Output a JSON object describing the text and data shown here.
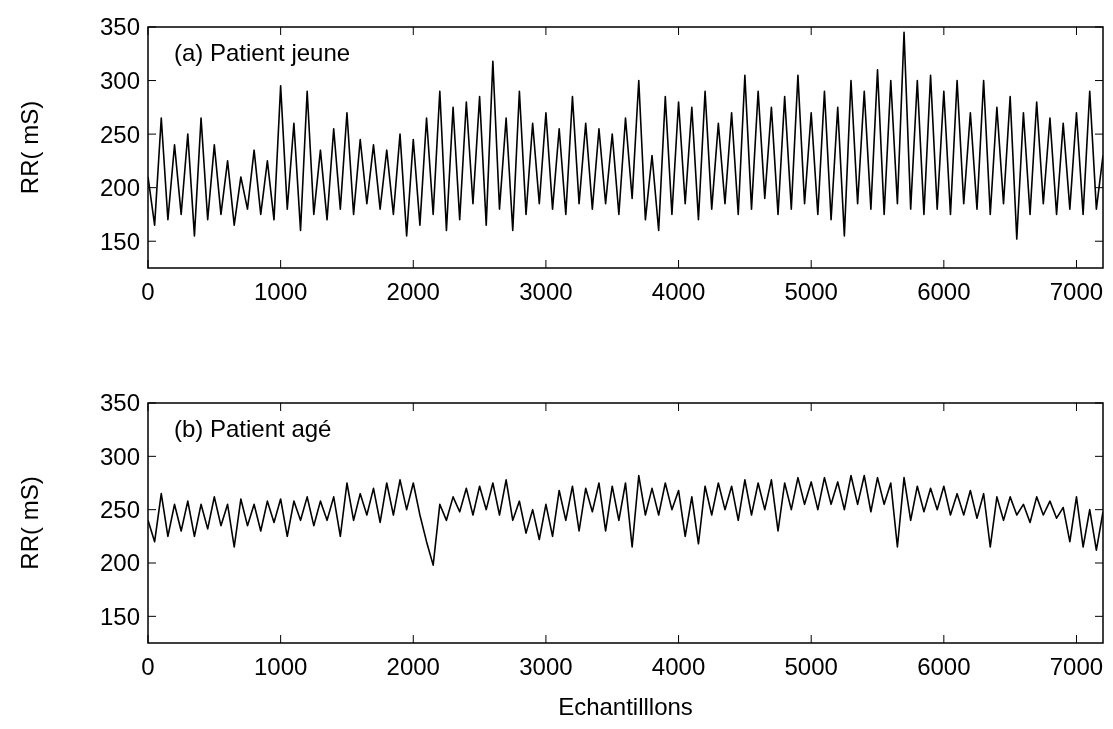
{
  "chart_data": [
    {
      "type": "line",
      "title": "(a) Patient jeune",
      "ylabel": "RR( mS)",
      "xlim": [
        0,
        7200
      ],
      "ylim": [
        125,
        350
      ],
      "xticks": [
        0,
        1000,
        2000,
        3000,
        4000,
        5000,
        6000,
        7000
      ],
      "yticks": [
        150,
        200,
        250,
        300,
        350
      ],
      "series": [
        {
          "color": "#000000",
          "x": [
            0,
            50,
            100,
            150,
            200,
            250,
            300,
            350,
            400,
            450,
            500,
            550,
            600,
            650,
            700,
            750,
            800,
            850,
            900,
            950,
            1000,
            1050,
            1100,
            1150,
            1200,
            1250,
            1300,
            1350,
            1400,
            1450,
            1500,
            1550,
            1600,
            1650,
            1700,
            1750,
            1800,
            1850,
            1900,
            1950,
            2000,
            2050,
            2100,
            2150,
            2200,
            2250,
            2300,
            2350,
            2400,
            2450,
            2500,
            2550,
            2600,
            2650,
            2700,
            2750,
            2800,
            2850,
            2900,
            2950,
            3000,
            3050,
            3100,
            3150,
            3200,
            3250,
            3300,
            3350,
            3400,
            3450,
            3500,
            3550,
            3600,
            3650,
            3700,
            3750,
            3800,
            3850,
            3900,
            3950,
            4000,
            4050,
            4100,
            4150,
            4200,
            4250,
            4300,
            4350,
            4400,
            4450,
            4500,
            4550,
            4600,
            4650,
            4700,
            4750,
            4800,
            4850,
            4900,
            4950,
            5000,
            5050,
            5100,
            5150,
            5200,
            5250,
            5300,
            5350,
            5400,
            5450,
            5500,
            5550,
            5600,
            5650,
            5700,
            5750,
            5800,
            5850,
            5900,
            5950,
            6000,
            6050,
            6100,
            6150,
            6200,
            6250,
            6300,
            6350,
            6400,
            6450,
            6500,
            6550,
            6600,
            6650,
            6700,
            6750,
            6800,
            6850,
            6900,
            6950,
            7000,
            7050,
            7100,
            7150,
            7200
          ],
          "values": [
            210,
            165,
            265,
            170,
            240,
            175,
            250,
            155,
            265,
            170,
            240,
            175,
            225,
            165,
            210,
            180,
            235,
            175,
            225,
            170,
            295,
            180,
            260,
            160,
            290,
            175,
            235,
            170,
            255,
            180,
            270,
            175,
            245,
            185,
            240,
            180,
            235,
            175,
            250,
            155,
            245,
            165,
            265,
            175,
            290,
            160,
            275,
            170,
            280,
            185,
            285,
            165,
            318,
            180,
            265,
            160,
            290,
            175,
            260,
            185,
            270,
            180,
            255,
            175,
            285,
            185,
            260,
            180,
            255,
            185,
            250,
            175,
            265,
            190,
            300,
            170,
            230,
            160,
            285,
            175,
            280,
            185,
            275,
            170,
            290,
            180,
            260,
            185,
            270,
            175,
            305,
            180,
            290,
            190,
            275,
            175,
            285,
            180,
            305,
            185,
            270,
            175,
            290,
            170,
            275,
            155,
            300,
            185,
            290,
            180,
            310,
            175,
            300,
            185,
            345,
            180,
            300,
            175,
            305,
            180,
            290,
            175,
            300,
            185,
            270,
            180,
            300,
            175,
            275,
            185,
            285,
            152,
            270,
            175,
            280,
            185,
            265,
            175,
            260,
            180,
            270,
            175,
            290,
            180,
            230
          ]
        }
      ]
    },
    {
      "type": "line",
      "title": "(b) Patient agé",
      "ylabel": "RR( mS)",
      "xlabel": "Echantilllons",
      "xlim": [
        0,
        7200
      ],
      "ylim": [
        125,
        350
      ],
      "xticks": [
        0,
        1000,
        2000,
        3000,
        4000,
        5000,
        6000,
        7000
      ],
      "yticks": [
        150,
        200,
        250,
        300,
        350
      ],
      "series": [
        {
          "color": "#000000",
          "x": [
            0,
            50,
            100,
            150,
            200,
            250,
            300,
            350,
            400,
            450,
            500,
            550,
            600,
            650,
            700,
            750,
            800,
            850,
            900,
            950,
            1000,
            1050,
            1100,
            1150,
            1200,
            1250,
            1300,
            1350,
            1400,
            1450,
            1500,
            1550,
            1600,
            1650,
            1700,
            1750,
            1800,
            1850,
            1900,
            1950,
            2000,
            2050,
            2100,
            2150,
            2200,
            2250,
            2300,
            2350,
            2400,
            2450,
            2500,
            2550,
            2600,
            2650,
            2700,
            2750,
            2800,
            2850,
            2900,
            2950,
            3000,
            3050,
            3100,
            3150,
            3200,
            3250,
            3300,
            3350,
            3400,
            3450,
            3500,
            3550,
            3600,
            3650,
            3700,
            3750,
            3800,
            3850,
            3900,
            3950,
            4000,
            4050,
            4100,
            4150,
            4200,
            4250,
            4300,
            4350,
            4400,
            4450,
            4500,
            4550,
            4600,
            4650,
            4700,
            4750,
            4800,
            4850,
            4900,
            4950,
            5000,
            5050,
            5100,
            5150,
            5200,
            5250,
            5300,
            5350,
            5400,
            5450,
            5500,
            5550,
            5600,
            5650,
            5700,
            5750,
            5800,
            5850,
            5900,
            5950,
            6000,
            6050,
            6100,
            6150,
            6200,
            6250,
            6300,
            6350,
            6400,
            6450,
            6500,
            6550,
            6600,
            6650,
            6700,
            6750,
            6800,
            6850,
            6900,
            6950,
            7000,
            7050,
            7100,
            7150,
            7200
          ],
          "values": [
            240,
            220,
            265,
            225,
            255,
            230,
            258,
            225,
            255,
            232,
            262,
            235,
            255,
            215,
            260,
            235,
            255,
            230,
            258,
            238,
            260,
            225,
            258,
            240,
            262,
            235,
            258,
            240,
            262,
            225,
            275,
            240,
            265,
            245,
            270,
            238,
            275,
            245,
            278,
            250,
            275,
            245,
            220,
            198,
            255,
            240,
            262,
            248,
            270,
            245,
            272,
            250,
            275,
            245,
            278,
            240,
            258,
            228,
            250,
            222,
            255,
            225,
            268,
            240,
            272,
            230,
            270,
            248,
            275,
            230,
            272,
            240,
            275,
            215,
            282,
            245,
            270,
            245,
            275,
            250,
            268,
            225,
            262,
            218,
            272,
            245,
            275,
            250,
            272,
            240,
            278,
            245,
            275,
            250,
            278,
            230,
            275,
            250,
            280,
            255,
            276,
            250,
            280,
            255,
            276,
            250,
            282,
            255,
            282,
            248,
            280,
            255,
            275,
            215,
            280,
            240,
            272,
            248,
            270,
            250,
            272,
            245,
            265,
            245,
            268,
            242,
            265,
            215,
            262,
            240,
            262,
            245,
            255,
            238,
            262,
            245,
            258,
            242,
            252,
            220,
            262,
            215,
            250,
            212,
            248
          ]
        }
      ]
    }
  ]
}
